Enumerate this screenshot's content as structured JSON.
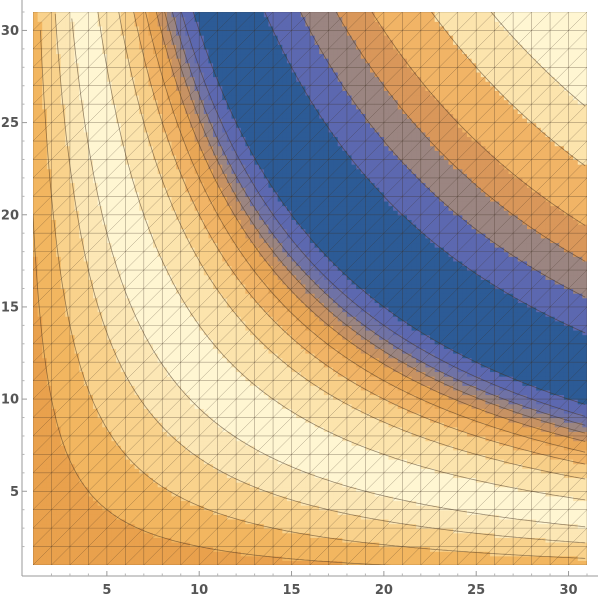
{
  "chart_data": {
    "type": "heatmap",
    "subtype": "contour",
    "title": "",
    "xlabel": "",
    "ylabel": "",
    "xlim": [
      1,
      31
    ],
    "ylim": [
      1,
      31
    ],
    "x_ticks": [
      5,
      10,
      15,
      20,
      25,
      30
    ],
    "y_ticks": [
      5,
      10,
      15,
      20,
      25,
      30
    ],
    "x_tick_labels": [
      "5",
      "10",
      "15",
      "20",
      "25",
      "30"
    ],
    "y_tick_labels": [
      "5",
      "10",
      "15",
      "20",
      "25",
      "30"
    ],
    "grid": false,
    "mesh_visible": true,
    "mesh_spacing": 1,
    "colormap": "orange-cream-blue",
    "bands": [
      {
        "product_range": [
          0,
          20
        ],
        "color": "#e9a14d"
      },
      {
        "product_range": [
          20,
          42
        ],
        "color": "#f2b660"
      },
      {
        "product_range": [
          42,
          68
        ],
        "color": "#f9d28c"
      },
      {
        "product_range": [
          68,
          95
        ],
        "color": "#fce7b5"
      },
      {
        "product_range": [
          95,
          140
        ],
        "color": "#fff6d2"
      },
      {
        "product_range": [
          140,
          175
        ],
        "color": "#fce4ad"
      },
      {
        "product_range": [
          175,
          200
        ],
        "color": "#f8cf88"
      },
      {
        "product_range": [
          200,
          220
        ],
        "color": "#f1b466"
      },
      {
        "product_range": [
          220,
          238
        ],
        "color": "#e8a656"
      },
      {
        "product_range": [
          238,
          252
        ],
        "color": "#c79263"
      },
      {
        "product_range": [
          252,
          265
        ],
        "color": "#9b8581"
      },
      {
        "product_range": [
          265,
          280
        ],
        "color": "#6f72a6"
      },
      {
        "product_range": [
          280,
          300
        ],
        "color": "#5c68b0"
      },
      {
        "product_range": [
          300,
          420
        ],
        "color": "#2c5b96"
      },
      {
        "product_range": [
          420,
          480
        ],
        "color": "#5c68b0"
      },
      {
        "product_range": [
          480,
          540
        ],
        "color": "#9b8581"
      },
      {
        "product_range": [
          540,
          600
        ],
        "color": "#d9975a"
      },
      {
        "product_range": [
          600,
          700
        ],
        "color": "#f1b466"
      },
      {
        "product_range": [
          700,
          800
        ],
        "color": "#fce4ad"
      },
      {
        "product_range": [
          800,
          1000
        ],
        "color": "#fff6d2"
      }
    ]
  }
}
